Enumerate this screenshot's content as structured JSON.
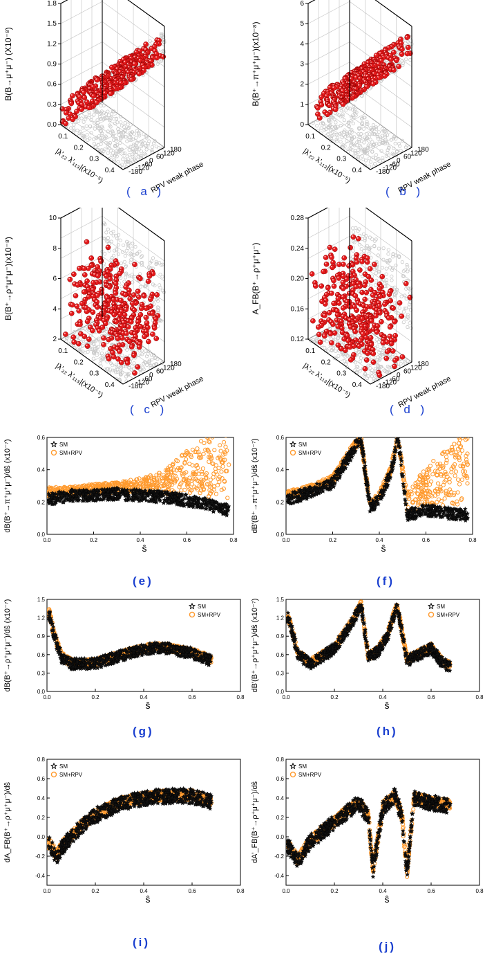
{
  "colors": {
    "rpv": "#e41a1c",
    "sm_scatter": "#ff9a2e",
    "sm_star": "#111111",
    "grid": "#bfbfbf",
    "ghost": "#c8c8c8",
    "label": "#1a3fcf"
  },
  "chart_data": [
    {
      "id": "a",
      "type": "scatter",
      "panel_label": "( a )",
      "zlabel": "B(B→μ⁺μ⁻) (X10⁻⁸)",
      "xlabel": "|λ'₂₂ λ'₁₁₃|(x10⁻⁵)",
      "ylabel": "RPV weak phase",
      "xticks": [
        "0.1",
        "0.2",
        "0.3",
        "0.4"
      ],
      "yticks": [
        "180",
        "120",
        "60",
        "0",
        "-60",
        "-120",
        "-180"
      ],
      "zticks": [
        "1.8",
        "1.5",
        "1.2",
        "0.9",
        "0.6",
        "0.3",
        "0.0"
      ],
      "zlim": [
        0.0,
        1.8
      ],
      "xlim": [
        0.05,
        0.45
      ],
      "ylim": [
        -180,
        180
      ],
      "trend": "rises with |coupling|",
      "series": [
        {
          "name": "RPV scan",
          "color": "#e41a1c"
        }
      ]
    },
    {
      "id": "b",
      "type": "scatter",
      "panel_label": "( b )",
      "zlabel": "B(B⁺→π⁺μ⁺μ⁻)(x10⁻⁸)",
      "xlabel": "|λ'₂₂ λ'₁₁₃|(x10⁻⁵)",
      "ylabel": "RPV weak phase",
      "xticks": [
        "0.1",
        "0.2",
        "0.3",
        "0.4"
      ],
      "yticks": [
        "180",
        "120",
        "60",
        "0",
        "-60",
        "-120",
        "-180"
      ],
      "zticks": [
        "6",
        "5",
        "4",
        "3",
        "2",
        "1",
        "0"
      ],
      "zlim": [
        0,
        6
      ],
      "xlim": [
        0.05,
        0.45
      ],
      "ylim": [
        -180,
        180
      ],
      "trend": "rises with |coupling|",
      "series": [
        {
          "name": "RPV scan",
          "color": "#e41a1c"
        }
      ]
    },
    {
      "id": "c",
      "type": "scatter",
      "panel_label": "( c )",
      "zlabel": "B(B⁺→ρ⁺μ⁺μ⁻)(x10⁻⁸)",
      "xlabel": "|λ'₂₂ λ'₁₁₃|(x10⁻⁵)",
      "ylabel": "RPV weak phase",
      "xticks": [
        "0.1",
        "0.2",
        "0.3",
        "0.4"
      ],
      "yticks": [
        "180",
        "120",
        "60",
        "0",
        "-60",
        "-120",
        "-180"
      ],
      "zticks": [
        "10",
        "8",
        "6",
        "4",
        "2"
      ],
      "zlim": [
        2,
        10
      ],
      "xlim": [
        0.05,
        0.45
      ],
      "ylim": [
        -180,
        180
      ],
      "trend": "cloud",
      "series": [
        {
          "name": "RPV scan",
          "color": "#e41a1c"
        }
      ]
    },
    {
      "id": "d",
      "type": "scatter",
      "panel_label": "( d )",
      "zlabel": "A_FB(B⁺→ρ⁺μ⁺μ⁻)",
      "xlabel": "|λ'₂₂ λ'₁₁₃|(x10⁻⁵)",
      "ylabel": "RPV weak phase",
      "xticks": [
        "0.1",
        "0.2",
        "0.3",
        "0.4"
      ],
      "yticks": [
        "180",
        "120",
        "60",
        "0",
        "-60",
        "-120",
        "-180"
      ],
      "zticks": [
        "0.28",
        "0.24",
        "0.20",
        "0.16",
        "0.12"
      ],
      "zlim": [
        0.12,
        0.28
      ],
      "xlim": [
        0.05,
        0.45
      ],
      "ylim": [
        -180,
        180
      ],
      "trend": "cloud",
      "series": [
        {
          "name": "RPV scan",
          "color": "#e41a1c"
        }
      ]
    },
    {
      "id": "e",
      "type": "scatter",
      "panel_label": "(e)",
      "ylabel": "dB(B⁺→π⁺μ⁺μ⁻)/dŝ (x10⁻⁷)",
      "xlabel": "ŝ",
      "xlim": [
        0.0,
        0.8
      ],
      "ylim": [
        0.0,
        0.6
      ],
      "xticks": [
        "0.0",
        "0.2",
        "0.4",
        "0.6",
        "0.8"
      ],
      "yticks": [
        "0.0",
        "0.2",
        "0.4",
        "0.6"
      ],
      "legend": {
        "position": "top-left",
        "entries": [
          "SM",
          "SM+RPV"
        ]
      },
      "series": [
        {
          "name": "SM",
          "marker": "star",
          "color": "#111111",
          "x": [
            0.02,
            0.1,
            0.2,
            0.3,
            0.4,
            0.5,
            0.6,
            0.7,
            0.78
          ],
          "y": [
            0.22,
            0.24,
            0.24,
            0.25,
            0.24,
            0.23,
            0.21,
            0.18,
            0.15
          ]
        },
        {
          "name": "SM+RPV",
          "marker": "circle",
          "color": "#ff9a2e",
          "x": [
            0.02,
            0.1,
            0.2,
            0.3,
            0.4,
            0.5,
            0.6,
            0.7,
            0.78
          ],
          "y": [
            0.26,
            0.27,
            0.28,
            0.29,
            0.3,
            0.32,
            0.38,
            0.43,
            0.5
          ]
        }
      ]
    },
    {
      "id": "f",
      "type": "scatter",
      "panel_label": "(f)",
      "ylabel": "dB'(B⁺→π⁺μ⁺μ⁻)/dŝ (x10⁻⁷)",
      "xlabel": "ŝ",
      "xlim": [
        0.0,
        0.8
      ],
      "ylim": [
        0.0,
        0.6
      ],
      "xticks": [
        "0.0",
        "0.2",
        "0.4",
        "0.6",
        "0.8"
      ],
      "yticks": [
        "0.0",
        "0.2",
        "0.4",
        "0.6"
      ],
      "legend": {
        "position": "top-left",
        "entries": [
          "SM",
          "SM+RPV"
        ]
      },
      "series": [
        {
          "name": "SM",
          "marker": "star",
          "color": "#111111",
          "x": [
            0.02,
            0.1,
            0.2,
            0.28,
            0.32,
            0.36,
            0.4,
            0.45,
            0.48,
            0.52,
            0.6,
            0.7,
            0.78
          ],
          "y": [
            0.22,
            0.26,
            0.32,
            0.5,
            0.6,
            0.16,
            0.22,
            0.38,
            0.6,
            0.12,
            0.15,
            0.13,
            0.12
          ]
        },
        {
          "name": "SM+RPV",
          "marker": "circle",
          "color": "#ff9a2e",
          "x": [
            0.02,
            0.1,
            0.2,
            0.28,
            0.32,
            0.36,
            0.4,
            0.45,
            0.48,
            0.52,
            0.6,
            0.7,
            0.78
          ],
          "y": [
            0.25,
            0.28,
            0.34,
            0.52,
            0.6,
            0.18,
            0.24,
            0.4,
            0.6,
            0.2,
            0.3,
            0.36,
            0.44
          ]
        }
      ]
    },
    {
      "id": "g",
      "type": "scatter",
      "panel_label": "(g)",
      "ylabel": "dB(B⁺→ρ⁺μ⁺μ⁻)/dŝ (x10⁻⁷)",
      "xlabel": "ŝ",
      "xlim": [
        0.0,
        0.8
      ],
      "ylim": [
        0.0,
        1.5
      ],
      "xticks": [
        "0.0",
        "0.2",
        "0.4",
        "0.6",
        "0.8"
      ],
      "yticks": [
        "0.0",
        "0.3",
        "0.6",
        "0.9",
        "1.2",
        "1.5"
      ],
      "legend": {
        "position": "top-right",
        "entries": [
          "SM",
          "SM+RPV"
        ]
      },
      "series": [
        {
          "name": "SM",
          "marker": "star",
          "color": "#111111",
          "x": [
            0.01,
            0.03,
            0.06,
            0.1,
            0.2,
            0.3,
            0.4,
            0.47,
            0.55,
            0.6,
            0.65,
            0.68
          ],
          "y": [
            1.25,
            0.9,
            0.55,
            0.45,
            0.45,
            0.58,
            0.68,
            0.72,
            0.66,
            0.62,
            0.55,
            0.5
          ]
        },
        {
          "name": "SM+RPV",
          "marker": "circle",
          "color": "#ff9a2e",
          "x": [
            0.01,
            0.03,
            0.06,
            0.1,
            0.2,
            0.3,
            0.4,
            0.47,
            0.55,
            0.6,
            0.65,
            0.68
          ],
          "y": [
            1.28,
            0.92,
            0.58,
            0.47,
            0.47,
            0.6,
            0.7,
            0.74,
            0.68,
            0.64,
            0.57,
            0.52
          ]
        }
      ]
    },
    {
      "id": "h",
      "type": "scatter",
      "panel_label": "(h)",
      "ylabel": "dB'(B⁺→ρ⁺μ⁺μ⁻)/dŝ (x10⁻⁷)",
      "xlabel": "ŝ",
      "xlim": [
        0.0,
        0.8
      ],
      "ylim": [
        0.0,
        1.5
      ],
      "xticks": [
        "0.0",
        "0.2",
        "0.4",
        "0.6",
        "0.8"
      ],
      "yticks": [
        "0.0",
        "0.3",
        "0.6",
        "0.9",
        "1.2",
        "1.5"
      ],
      "legend": {
        "position": "top-right",
        "entries": [
          "SM",
          "SM+RPV"
        ]
      },
      "series": [
        {
          "name": "SM",
          "marker": "star",
          "color": "#111111",
          "x": [
            0.01,
            0.05,
            0.1,
            0.2,
            0.27,
            0.31,
            0.34,
            0.38,
            0.42,
            0.46,
            0.5,
            0.55,
            0.6,
            0.65,
            0.68
          ],
          "y": [
            1.2,
            0.6,
            0.45,
            0.7,
            1.1,
            1.4,
            0.55,
            0.65,
            0.9,
            1.4,
            0.5,
            0.6,
            0.7,
            0.45,
            0.4
          ]
        },
        {
          "name": "SM+RPV",
          "marker": "circle",
          "color": "#ff9a2e",
          "x": [
            0.01,
            0.05,
            0.1,
            0.2,
            0.27,
            0.31,
            0.34,
            0.38,
            0.42,
            0.46,
            0.5,
            0.55,
            0.6,
            0.65,
            0.68
          ],
          "y": [
            1.22,
            0.62,
            0.47,
            0.72,
            1.12,
            1.42,
            0.57,
            0.67,
            0.92,
            1.42,
            0.52,
            0.62,
            0.72,
            0.47,
            0.42
          ]
        }
      ]
    },
    {
      "id": "i",
      "type": "scatter",
      "panel_label": "(i)",
      "ylabel": "dA_FB(B⁺→ρ⁺μ⁺μ⁻)/dŝ",
      "xlabel": "ŝ",
      "xlim": [
        0.0,
        0.8
      ],
      "ylim": [
        -0.5,
        0.8
      ],
      "xticks": [
        "0.0",
        "0.2",
        "0.4",
        "0.6",
        "0.8"
      ],
      "yticks": [
        "-0.4",
        "-0.2",
        "0.0",
        "0.2",
        "0.4",
        "0.6",
        "0.8"
      ],
      "legend": {
        "position": "top-left",
        "entries": [
          "SM",
          "SM+RPV"
        ]
      },
      "series": [
        {
          "name": "SM",
          "marker": "star",
          "color": "#111111",
          "x": [
            0.01,
            0.04,
            0.07,
            0.1,
            0.15,
            0.2,
            0.3,
            0.4,
            0.5,
            0.6,
            0.68
          ],
          "y": [
            -0.08,
            -0.2,
            -0.08,
            0.0,
            0.12,
            0.22,
            0.34,
            0.4,
            0.42,
            0.42,
            0.36
          ]
        },
        {
          "name": "SM+RPV",
          "marker": "circle",
          "color": "#ff9a2e",
          "x": [
            0.01,
            0.04,
            0.07,
            0.1,
            0.15,
            0.2,
            0.3,
            0.4,
            0.5,
            0.6,
            0.68
          ],
          "y": [
            -0.07,
            -0.19,
            -0.07,
            0.01,
            0.13,
            0.23,
            0.35,
            0.41,
            0.43,
            0.43,
            0.37
          ]
        }
      ]
    },
    {
      "id": "j",
      "type": "scatter",
      "panel_label": "(j)",
      "ylabel": "dA'_FB(B⁺→ρ⁺μ⁺μ⁻)/dŝ",
      "xlabel": "ŝ",
      "xlim": [
        0.0,
        0.8
      ],
      "ylim": [
        -0.5,
        0.8
      ],
      "xticks": [
        "0.0",
        "0.2",
        "0.4",
        "0.6",
        "0.8"
      ],
      "yticks": [
        "-0.4",
        "-0.2",
        "0.0",
        "0.2",
        "0.4",
        "0.6",
        "0.8"
      ],
      "legend": {
        "position": "top-left",
        "entries": [
          "SM",
          "SM+RPV"
        ]
      },
      "series": [
        {
          "name": "SM",
          "marker": "star",
          "color": "#111111",
          "x": [
            0.01,
            0.05,
            0.1,
            0.2,
            0.3,
            0.34,
            0.36,
            0.4,
            0.45,
            0.48,
            0.5,
            0.53,
            0.6,
            0.68
          ],
          "y": [
            -0.1,
            -0.25,
            -0.05,
            0.15,
            0.35,
            0.2,
            -0.35,
            0.3,
            0.42,
            0.2,
            -0.38,
            0.4,
            0.35,
            0.32
          ]
        },
        {
          "name": "SM+RPV",
          "marker": "circle",
          "color": "#ff9a2e",
          "x": [
            0.01,
            0.05,
            0.1,
            0.2,
            0.3,
            0.34,
            0.36,
            0.4,
            0.45,
            0.48,
            0.5,
            0.53,
            0.6,
            0.68
          ],
          "y": [
            -0.09,
            -0.24,
            -0.04,
            0.16,
            0.36,
            0.21,
            -0.34,
            0.31,
            0.43,
            0.21,
            -0.37,
            0.41,
            0.36,
            0.33
          ]
        }
      ]
    }
  ]
}
